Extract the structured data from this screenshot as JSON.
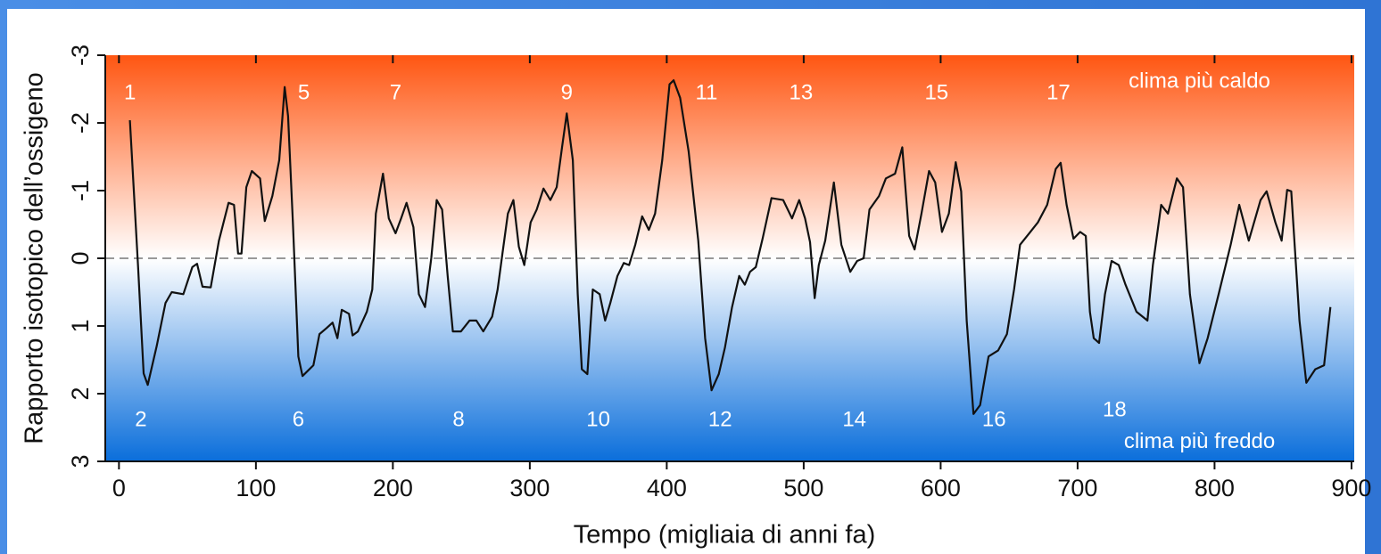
{
  "chart_data": {
    "type": "line",
    "x_label": "Tempo (migliaia di anni fa)",
    "y_label": "Rapporto isotopico dell’ossigeno",
    "xlim": [
      -10,
      902
    ],
    "ylim": [
      -3,
      3
    ],
    "y_inverted": true,
    "xticks": [
      0,
      100,
      200,
      300,
      400,
      500,
      600,
      700,
      800,
      900
    ],
    "yticks": [
      -3,
      -2,
      -1,
      0,
      1,
      2,
      3
    ],
    "reference_line": 0,
    "background_colors": [
      "#ff5612",
      "#ffffff",
      "#0a6edb"
    ],
    "line_color": "#111111",
    "x": [
      8,
      14,
      18,
      21,
      27.5,
      34,
      38.5,
      47,
      53.6,
      57,
      61,
      67,
      73,
      80,
      84,
      87,
      89.5,
      93,
      97,
      103,
      106.5,
      112,
      117,
      121,
      123.5,
      127,
      131,
      134,
      142,
      146.4,
      151.6,
      156,
      159.5,
      162.7,
      168,
      170.6,
      174.5,
      181,
      185,
      187.6,
      192.8,
      197,
      202,
      206,
      210,
      215,
      219,
      223.5,
      228,
      232,
      236,
      240,
      243.8,
      249.7,
      256,
      261,
      266,
      272.5,
      276.5,
      280,
      284,
      288,
      292,
      296,
      300.6,
      305,
      310,
      315,
      319.6,
      323.5,
      327,
      331.4,
      335,
      338,
      342,
      346,
      351,
      355,
      358.8,
      364,
      368.6,
      372.5,
      377,
      382,
      386.9,
      391.5,
      396.7,
      402,
      405,
      409.8,
      416,
      423,
      428,
      432.7,
      438,
      442.5,
      447.7,
      452.9,
      457,
      460.8,
      465,
      470,
      476.5,
      485,
      491.5,
      496.7,
      501,
      504.6,
      508,
      511,
      515.7,
      522,
      527.5,
      534,
      539,
      543.8,
      548,
      555,
      560,
      566.7,
      572,
      577,
      581,
      586,
      591.5,
      596,
      601,
      606,
      611,
      615,
      619,
      624,
      628.8,
      635,
      642,
      648.4,
      653.6,
      658,
      664.7,
      671,
      677.8,
      684,
      687.6,
      692,
      697,
      701.9,
      706,
      709,
      711.8,
      715.7,
      720,
      724.8,
      730,
      735,
      743,
      751,
      755,
      761,
      766,
      772.5,
      777,
      782,
      789,
      795,
      803,
      811.8,
      818,
      825,
      833.6,
      838,
      844.4,
      849,
      853,
      856,
      862,
      867,
      873.5,
      880,
      884.6
    ],
    "series": [
      {
        "values": [
          -2.04,
          0.13,
          1.7,
          1.87,
          1.3,
          0.66,
          0.5,
          0.53,
          0.13,
          0.08,
          0.42,
          0.43,
          -0.26,
          -0.82,
          -0.79,
          -0.07,
          -0.07,
          -1.05,
          -1.29,
          -1.18,
          -0.55,
          -0.92,
          -1.45,
          -2.53,
          -2.1,
          -0.53,
          1.45,
          1.74,
          1.58,
          1.12,
          1.03,
          0.95,
          1.18,
          0.76,
          0.82,
          1.14,
          1.08,
          0.79,
          0.46,
          -0.66,
          -1.25,
          -0.59,
          -0.37,
          -0.59,
          -0.82,
          -0.46,
          0.53,
          0.72,
          0,
          -0.86,
          -0.72,
          0.26,
          1.08,
          1.08,
          0.92,
          0.92,
          1.08,
          0.86,
          0.46,
          -0.07,
          -0.66,
          -0.86,
          -0.17,
          0.1,
          -0.53,
          -0.72,
          -1.03,
          -0.86,
          -1.05,
          -1.64,
          -2.14,
          -1.45,
          0.53,
          1.64,
          1.71,
          0.46,
          0.53,
          0.92,
          0.66,
          0.26,
          0.07,
          0.1,
          -0.2,
          -0.62,
          -0.42,
          -0.66,
          -1.45,
          -2.57,
          -2.63,
          -2.37,
          -1.58,
          -0.26,
          1.18,
          1.95,
          1.71,
          1.32,
          0.72,
          0.26,
          0.39,
          0.2,
          0.13,
          -0.29,
          -0.89,
          -0.86,
          -0.59,
          -0.86,
          -0.59,
          -0.24,
          0.59,
          0.1,
          -0.26,
          -1.12,
          -0.2,
          0.2,
          0.04,
          0,
          -0.72,
          -0.92,
          -1.18,
          -1.25,
          -1.64,
          -0.33,
          -0.13,
          -0.66,
          -1.29,
          -1.12,
          -0.39,
          -0.66,
          -1.42,
          -0.99,
          0.92,
          2.3,
          2.17,
          1.45,
          1.36,
          1.12,
          0.46,
          -0.2,
          -0.37,
          -0.53,
          -0.79,
          -1.32,
          -1.41,
          -0.79,
          -0.29,
          -0.39,
          -0.33,
          0.79,
          1.18,
          1.25,
          0.53,
          0.04,
          0.1,
          0.39,
          0.79,
          0.92,
          0.1,
          -0.79,
          -0.66,
          -1.18,
          -1.05,
          0.53,
          1.55,
          1.18,
          0.53,
          -0.2,
          -0.79,
          -0.26,
          -0.86,
          -0.99,
          -0.53,
          -0.26,
          -1.01,
          -0.99,
          0.92,
          1.84,
          1.64,
          1.58,
          0.72
        ]
      }
    ],
    "annotations": [
      {
        "text": "1",
        "x": 8,
        "y": -2.43
      },
      {
        "text": "2",
        "x": 16,
        "y": 2.4
      },
      {
        "text": "5",
        "x": 135,
        "y": -2.43
      },
      {
        "text": "6",
        "x": 131,
        "y": 2.4
      },
      {
        "text": "7",
        "x": 202,
        "y": -2.43
      },
      {
        "text": "8",
        "x": 248,
        "y": 2.4
      },
      {
        "text": "9",
        "x": 327,
        "y": -2.43
      },
      {
        "text": "10",
        "x": 350,
        "y": 2.4
      },
      {
        "text": "11",
        "x": 429,
        "y": -2.43
      },
      {
        "text": "12",
        "x": 439,
        "y": 2.4
      },
      {
        "text": "13",
        "x": 498,
        "y": -2.43
      },
      {
        "text": "14",
        "x": 537,
        "y": 2.4
      },
      {
        "text": "15",
        "x": 597,
        "y": -2.43
      },
      {
        "text": "16",
        "x": 639,
        "y": 2.4
      },
      {
        "text": "17",
        "x": 686,
        "y": -2.43
      },
      {
        "text": "18",
        "x": 727,
        "y": 2.25
      },
      {
        "text": "clima più caldo",
        "x": 789,
        "y": -2.6
      },
      {
        "text": "clima più freddo",
        "x": 789,
        "y": 2.72
      }
    ]
  }
}
